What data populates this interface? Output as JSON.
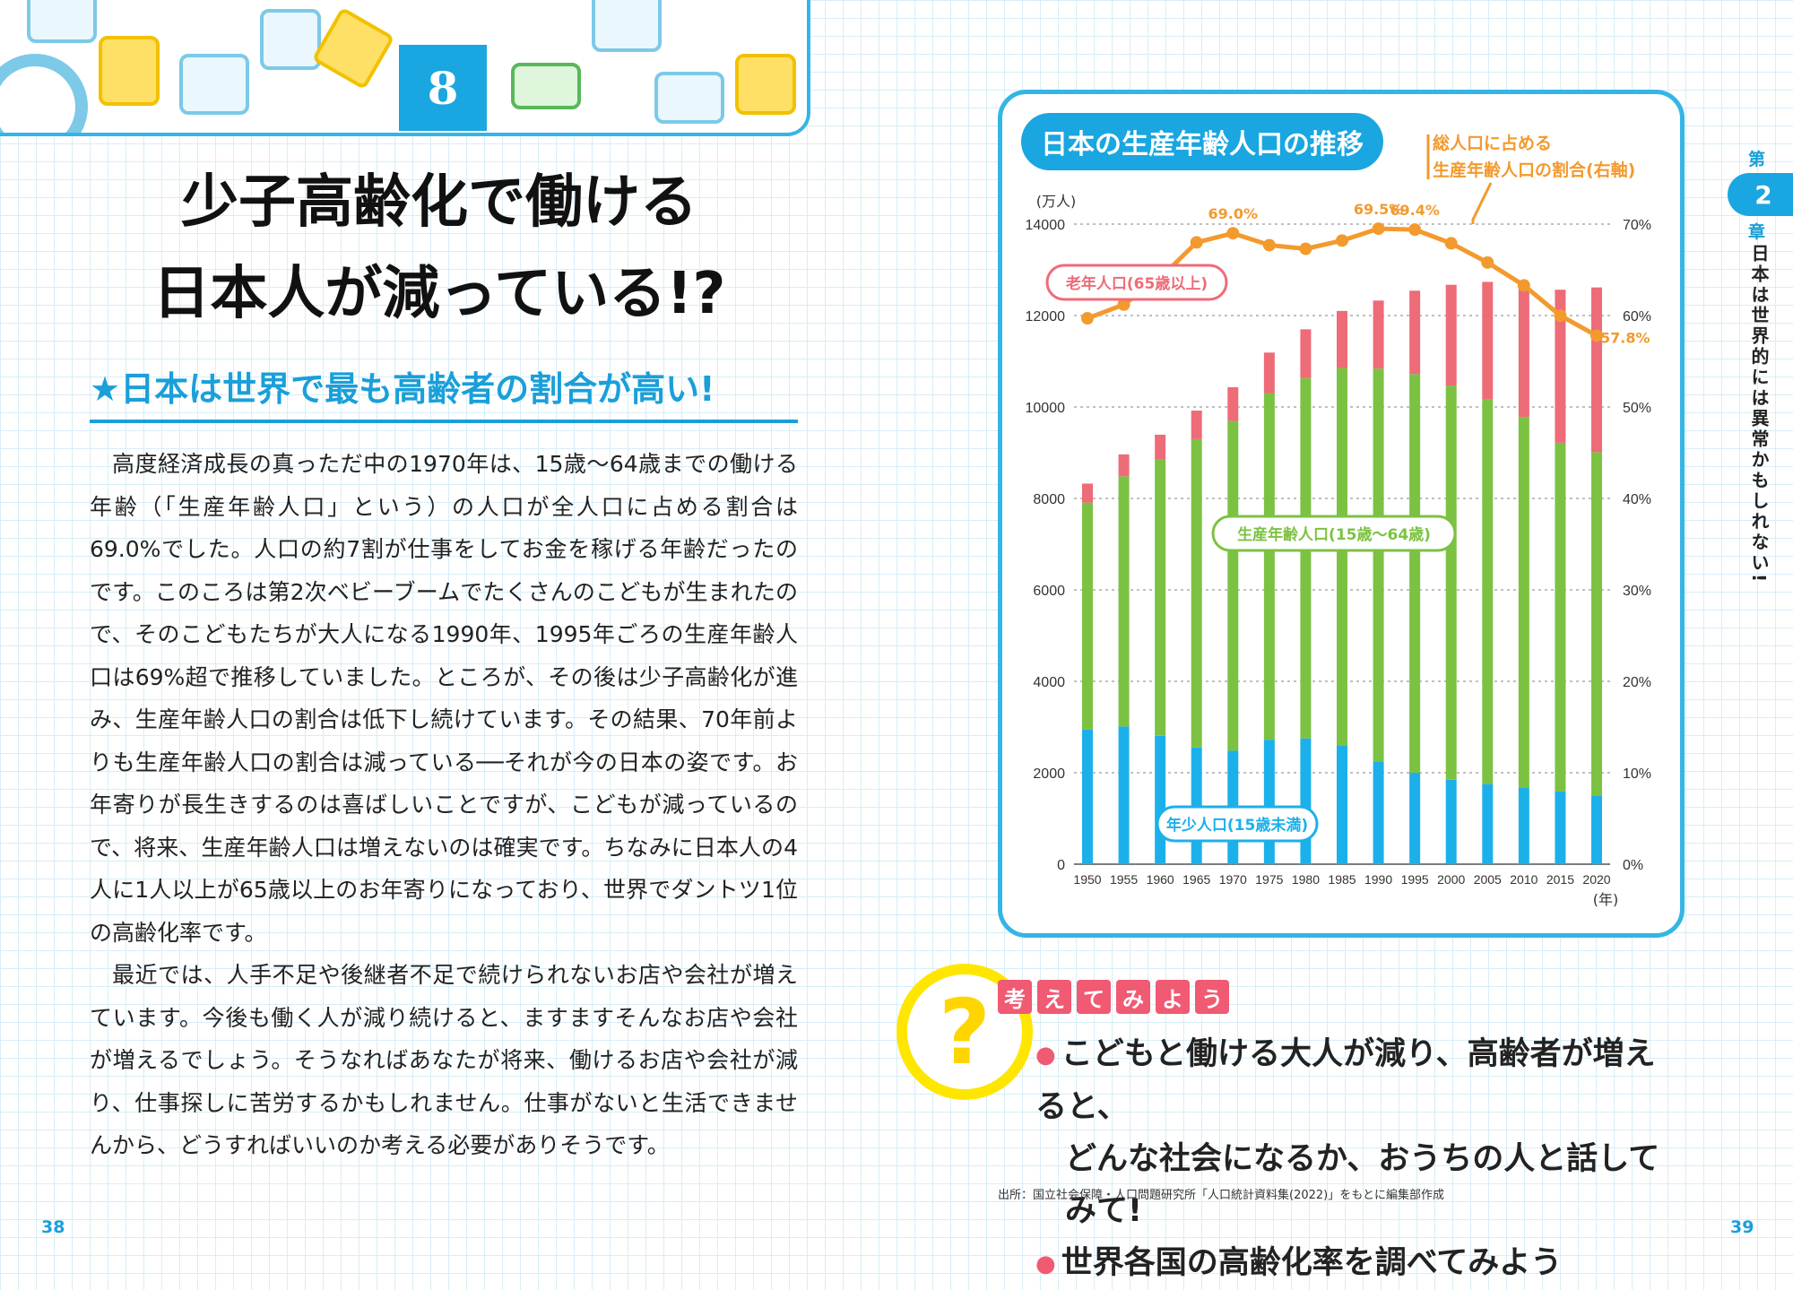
{
  "header": {
    "chapter_number": "8"
  },
  "left_page": {
    "title_line1": "少子高齢化で働ける",
    "title_line2": "日本人が減っている!?",
    "section_heading": "★日本は世界で最も高齢者の割合が高い!",
    "paragraph1": "高度経済成長の真っただ中の1970年は、15歳〜64歳までの働ける年齢（「生産年齢人口」という）の人口が全人口に占める割合は69.0%でした。人口の約7割が仕事をしてお金を稼げる年齢だったのです。このころは第2次ベビーブームでたくさんのこどもが生まれたので、そのこどもたちが大人になる1990年、1995年ごろの生産年齢人口は69%超で推移していました。ところが、その後は少子高齢化が進み、生産年齢人口の割合は低下し続けています。その結果、70年前よりも生産年齢人口の割合は減っている──それが今の日本の姿です。お年寄りが長生きするのは喜ばしいことですが、こどもが減っているので、将来、生産年齢人口は増えないのは確実です。ちなみに日本人の4人に1人以上が65歳以上のお年寄りになっており、世界でダントツ1位の高齢化率です。",
    "paragraph2": "最近では、人手不足や後継者不足で続けられないお店や会社が増えています。今後も働く人が減り続けると、ますますそんなお店や会社が増えるでしょう。そうなればあなたが将来、働けるお店や会社が減り、仕事探しに苦労するかもしれません。仕事がないと生活できませんから、どうすればいいのか考える必要がありそうです。",
    "page_number": "38"
  },
  "chart_data": {
    "type": "bar",
    "title": "日本の生産年齢人口の推移",
    "ylabel": "(万人)",
    "y2label": "総人口に占める生産年齢人口の割合(右軸)",
    "xlabel": "(年)",
    "ylim": [
      0,
      14000
    ],
    "y2lim": [
      0,
      70
    ],
    "yticks": [
      "0",
      "2000",
      "4000",
      "6000",
      "8000",
      "10000",
      "12000",
      "14000"
    ],
    "y2ticks": [
      "0%",
      "10%",
      "20%",
      "30%",
      "40%",
      "50%",
      "60%",
      "70%"
    ],
    "categories": [
      "1950",
      "1955",
      "1960",
      "1965",
      "1970",
      "1975",
      "1980",
      "1985",
      "1990",
      "1995",
      "2000",
      "2005",
      "2010",
      "2015",
      "2020"
    ],
    "stacked": true,
    "series": [
      {
        "name": "年少人口(15歳未満)",
        "color": "#1cb0ea",
        "values": [
          2943,
          3012,
          2807,
          2553,
          2482,
          2722,
          2751,
          2603,
          2249,
          2001,
          1847,
          1752,
          1680,
          1589,
          1503
        ]
      },
      {
        "name": "生産年齢人口(15歳〜64歳)",
        "color": "#7cc242",
        "values": [
          4966,
          5473,
          6047,
          6744,
          7212,
          7581,
          7883,
          8251,
          8590,
          8717,
          8622,
          8409,
          8103,
          7629,
          7509
        ]
      },
      {
        "name": "老年人口(65歳以上)",
        "color": "#ee6b78",
        "values": [
          416,
          479,
          540,
          624,
          739,
          887,
          1065,
          1247,
          1489,
          1826,
          2204,
          2576,
          2925,
          3347,
          3603
        ]
      }
    ],
    "line_series": {
      "name": "総人口に占める生産年齢人口の割合(右軸)",
      "color": "#f39a2e",
      "values": [
        59.7,
        61.2,
        64.1,
        68.0,
        69.0,
        67.7,
        67.3,
        68.2,
        69.5,
        69.4,
        67.9,
        65.8,
        63.3,
        60.0,
        57.8
      ],
      "labels": {
        "0": "59.7%",
        "4": "69.0%",
        "8": "69.5%",
        "9": "69.4%",
        "14": "57.8%"
      }
    },
    "annotations": [
      "老年人口(65歳以上)",
      "生産年齢人口(15歳〜64歳)",
      "年少人口(15歳未満)"
    ]
  },
  "think": {
    "symbol": "?",
    "header_chars": [
      "考",
      "え",
      "て",
      "み",
      "よ",
      "う"
    ],
    "item1_line1": "こどもと働ける大人が減り、高齢者が増えると、",
    "item1_line2": "どんな社会になるか、おうちの人と話してみて!",
    "item2": "世界各国の高齢化率を調べてみよう"
  },
  "source_note": "出所：国立社会保障・人口問題研究所「人口統計資料集(2022)」をもとに編集部作成",
  "side_tab": {
    "top": "第",
    "number": "2",
    "bottom": "章",
    "text": "日本は世界的には異常かもしれない!"
  },
  "right_page_number": "39"
}
